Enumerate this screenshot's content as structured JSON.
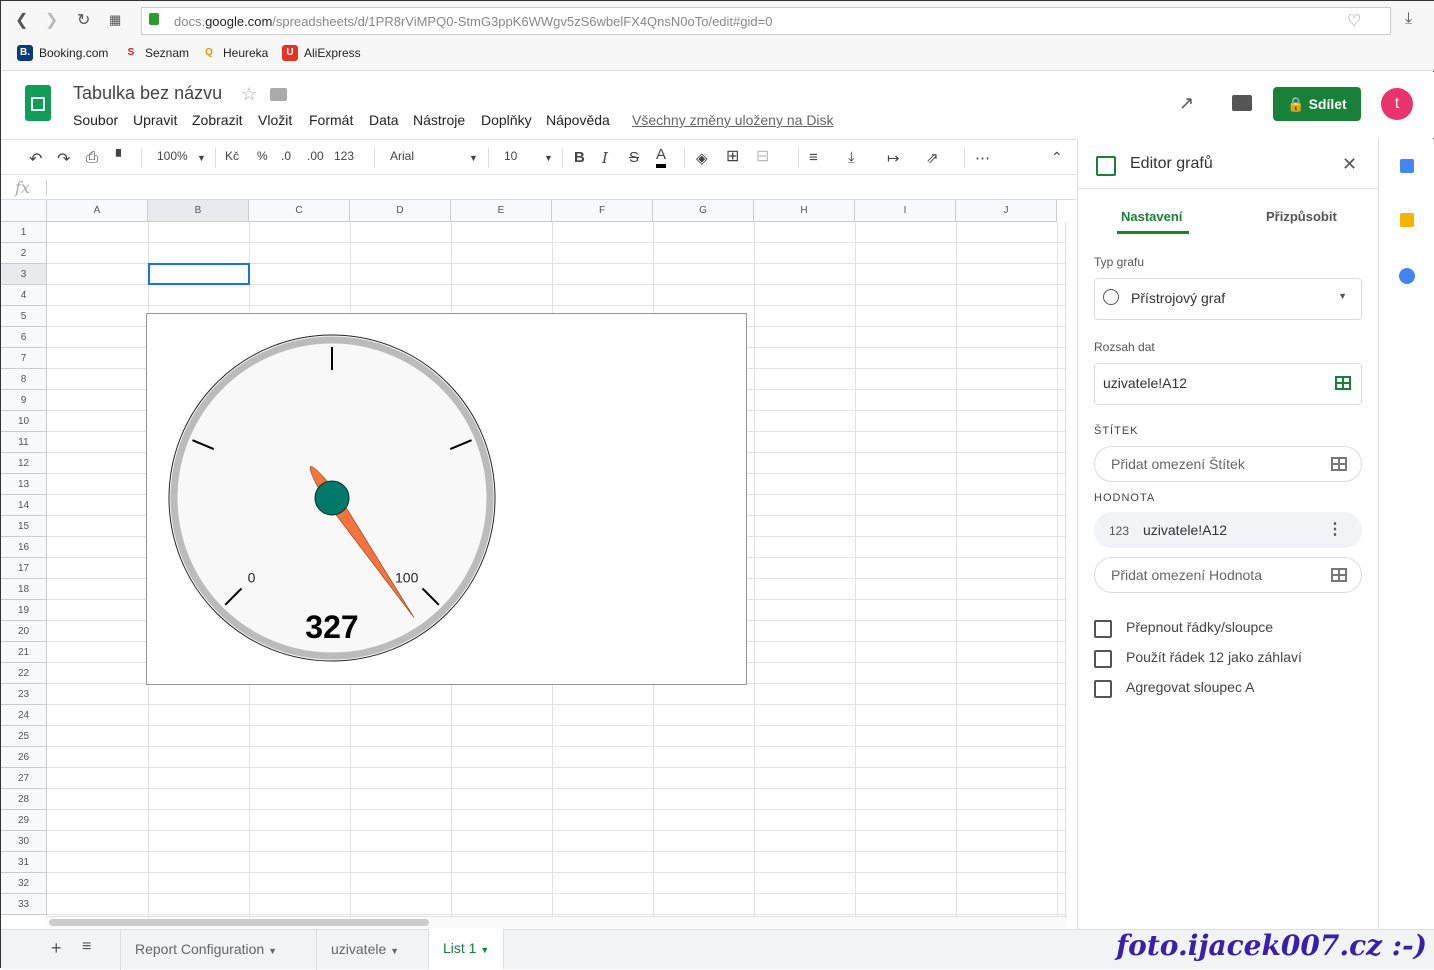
{
  "browser": {
    "url_prefix": "docs.",
    "url_domain": "google.com",
    "url_rest": "/spreadsheets/d/1PR8rViMPQ0-StmG3ppK6WWgv5zS6wbelFX4QnsN0oTo/edit#gid=0",
    "bookmarks": [
      {
        "label": "Booking.com",
        "icon": "B.",
        "color": "#0c3b7c"
      },
      {
        "label": "Seznam",
        "icon": "S",
        "color": "#d61e1e"
      },
      {
        "label": "Heureka",
        "icon": "Q",
        "color": "#f29100"
      },
      {
        "label": "AliExpress",
        "icon": "U",
        "color": "#e43225"
      }
    ]
  },
  "app": {
    "title": "Tabulka bez názvu",
    "menu": [
      "Soubor",
      "Upravit",
      "Zobrazit",
      "Vložit",
      "Formát",
      "Data",
      "Nástroje",
      "Doplňky",
      "Nápověda"
    ],
    "save_status": "Všechny změny uloženy na Disk",
    "share_label": "Sdílet",
    "avatar_letter": "t",
    "accent": "#188038"
  },
  "toolbar": {
    "zoom": "100%",
    "currency": "Kč",
    "percent": "%",
    "dec_less": ".0",
    "dec_more": ".00",
    "format": "123",
    "font": "Arial",
    "size": "10",
    "bold": "B",
    "italic": "I",
    "strike": "S",
    "textcolor": "A",
    "more": "⋯"
  },
  "formula_bar": {
    "fx": "fx"
  },
  "grid": {
    "columns": [
      "A",
      "B",
      "C",
      "D",
      "E",
      "F",
      "G",
      "H",
      "I",
      "J"
    ],
    "selected_cell": "B3",
    "rows": 33
  },
  "chart": {
    "type": "gauge",
    "value": 327,
    "display_value": "327",
    "min": 0,
    "max": 100,
    "min_label": "0",
    "max_label": "100",
    "needle_color": "#f4733f",
    "hub_color": "#00796b"
  },
  "editor": {
    "title": "Editor grafů",
    "tabs": [
      "Nastavení",
      "Přizpůsobit"
    ],
    "active_tab": 0,
    "chart_type_label": "Typ grafu",
    "chart_type": "Přístrojový graf",
    "range_label": "Rozsah dat",
    "range": "uzivatele!A12",
    "label_caption": "ŠTÍTEK",
    "label_add": "Přidat omezení Štítek",
    "value_caption": "HODNOTA",
    "value_icon": "123",
    "value_range": "uzivatele!A12",
    "value_add": "Přidat omezení Hodnota",
    "checkboxes": [
      {
        "label": "Přepnout řádky/sloupce",
        "checked": false
      },
      {
        "label": "Použít řádek 12 jako záhlaví",
        "checked": false
      },
      {
        "label": "Agregovat sloupec A",
        "checked": false
      }
    ]
  },
  "sheets": {
    "tabs": [
      "Report Configuration",
      "uzivatele",
      "List 1"
    ],
    "active": 2
  },
  "watermark": "foto.ijacek007.cz :-)"
}
